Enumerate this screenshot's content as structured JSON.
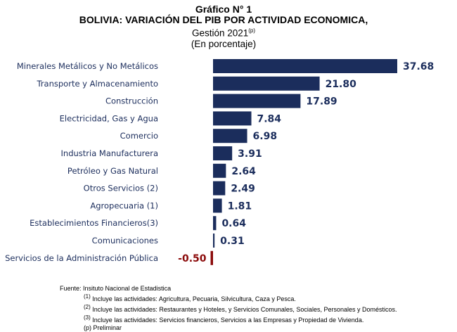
{
  "chart_data": {
    "type": "bar",
    "orientation": "horizontal",
    "title": "Gráfico N° 1",
    "subtitle": "BOLIVIA: VARIACIÓN DEL PIB POR ACTIVIDAD ECONOMICA,",
    "period": "Gestión 2021",
    "period_mark": "(p)",
    "unit": "(En porcentaje)",
    "categories": [
      "Minerales Metálicos y No Metálicos",
      "Transporte y Almacenamiento",
      "Construcción",
      "Electricidad, Gas y Agua",
      "Comercio",
      "Industria Manufacturera",
      "Petróleo y Gas Natural",
      "Otros Servicios (2)",
      "Agropecuaria (1)",
      "Establecimientos Financieros(3)",
      "Comunicaciones",
      "Servicios de la Administración Pública"
    ],
    "values": [
      37.68,
      21.8,
      17.89,
      7.84,
      6.98,
      3.91,
      2.64,
      2.49,
      1.81,
      0.64,
      0.31,
      -0.5
    ],
    "data_labels": [
      "37.68",
      "21.80",
      "17.89",
      "7.84",
      "6.98",
      "3.91",
      "2.64",
      "2.49",
      "1.81",
      "0.64",
      "0.31",
      "-0.50"
    ],
    "grid": false,
    "legend": "none",
    "colors": {
      "positive": "#1b2d5c",
      "negative": "#8b0a0a",
      "category_text": "#1b2d5c"
    }
  },
  "notes": {
    "source": "Fuente: Insituto Nacional de Estadistica",
    "n1_mark": "(1)",
    "n1": "Incluye las actividades: Agricultura, Pecuaria, Silvicultura, Caza y Pesca.",
    "n2_mark": "(2)",
    "n2": "Incluye las actividades: Restaurantes y Hoteles, y Servicios Comunales, Sociales, Personales y Domésticos.",
    "n3_mark": "(3)",
    "n3": "Incluye las actividades: Servicios financieros, Servicios a las Empresas y Propiedad de Vivienda.",
    "prelim": "(p) Preliminar"
  }
}
